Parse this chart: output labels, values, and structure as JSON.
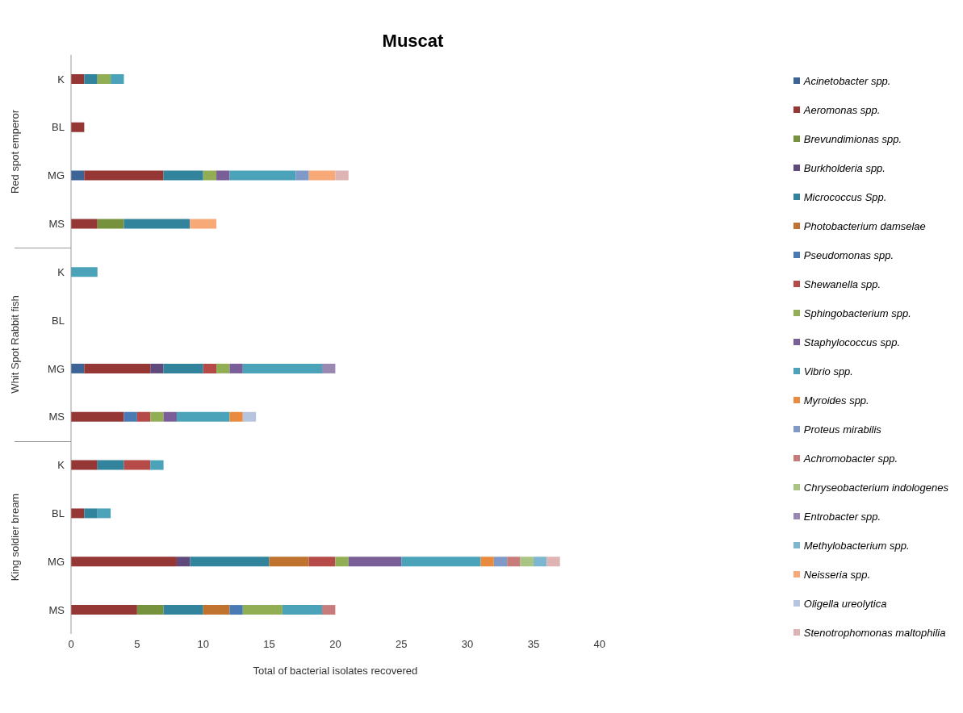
{
  "chart_data": {
    "type": "bar",
    "orientation": "horizontal",
    "stacked": true,
    "title": "Muscat",
    "xlabel": "Total of bacterial isolates recovered",
    "categories": [
      "K",
      "BL",
      "MG",
      "MS",
      "K",
      "BL",
      "MG",
      "MS",
      "K",
      "BL",
      "MG",
      "MS"
    ],
    "annotations": [
      "Red spot emperor",
      "Whit Spot  Rabbit fish",
      "King soldier bream"
    ],
    "xlim": [
      0,
      40
    ],
    "xticks": [
      0,
      5,
      10,
      15,
      20,
      25,
      30,
      35,
      40
    ],
    "grid": false,
    "legend": "right",
    "series": [
      {
        "name": "Acinetobacter  spp.",
        "color": "#3c6496",
        "values": [
          null,
          null,
          1,
          null,
          null,
          null,
          1,
          null,
          null,
          null,
          null,
          null
        ]
      },
      {
        "name": "Aeromonas spp.",
        "color": "#953735",
        "values": [
          1,
          1,
          6,
          2,
          null,
          null,
          5,
          4,
          2,
          1,
          8,
          5
        ]
      },
      {
        "name": "Brevundimionas  spp.",
        "color": "#77923c",
        "values": [
          null,
          null,
          null,
          2,
          null,
          null,
          null,
          null,
          null,
          null,
          null,
          2
        ]
      },
      {
        "name": "Burkholderia spp.",
        "color": "#604a7b",
        "values": [
          null,
          null,
          null,
          null,
          null,
          null,
          1,
          null,
          null,
          null,
          1,
          null
        ]
      },
      {
        "name": "Micrococcus Spp.",
        "color": "#31849b",
        "values": [
          1,
          null,
          3,
          5,
          null,
          null,
          3,
          null,
          2,
          1,
          6,
          3
        ]
      },
      {
        "name": "Photobacterium damselae",
        "color": "#c0722f",
        "values": [
          null,
          null,
          null,
          null,
          null,
          null,
          null,
          null,
          null,
          null,
          3,
          2
        ]
      },
      {
        "name": "Pseudomonas spp.",
        "color": "#4a7ab4",
        "values": [
          null,
          null,
          null,
          null,
          null,
          null,
          null,
          1,
          null,
          null,
          null,
          1
        ]
      },
      {
        "name": "Shewanella  spp.",
        "color": "#b54a48",
        "values": [
          null,
          null,
          null,
          null,
          null,
          null,
          1,
          1,
          2,
          null,
          2,
          null
        ]
      },
      {
        "name": "Sphingobacterium  spp.",
        "color": "#92ae54",
        "values": [
          1,
          null,
          1,
          null,
          null,
          null,
          1,
          1,
          null,
          null,
          1,
          3
        ]
      },
      {
        "name": "Staphylococcus  spp.",
        "color": "#7a5e97",
        "values": [
          null,
          null,
          1,
          null,
          null,
          null,
          1,
          1,
          null,
          null,
          4,
          null
        ]
      },
      {
        "name": "Vibrio spp.",
        "color": "#4aa3b9",
        "values": [
          1,
          null,
          5,
          null,
          2,
          null,
          6,
          4,
          1,
          1,
          6,
          3
        ]
      },
      {
        "name": "Myroides spp.",
        "color": "#e88b3e",
        "values": [
          null,
          null,
          null,
          null,
          null,
          null,
          null,
          1,
          null,
          null,
          1,
          null
        ]
      },
      {
        "name": "Proteus mirabilis",
        "color": "#7f9ac7",
        "values": [
          null,
          null,
          1,
          null,
          null,
          null,
          null,
          null,
          null,
          null,
          1,
          null
        ]
      },
      {
        "name": "Achromobacter  spp.",
        "color": "#c87b7b",
        "values": [
          null,
          null,
          null,
          null,
          null,
          null,
          null,
          null,
          null,
          null,
          1,
          1
        ]
      },
      {
        "name": "Chryseobacterium indologenes",
        "color": "#aac484",
        "values": [
          null,
          null,
          null,
          null,
          null,
          null,
          null,
          null,
          null,
          null,
          1,
          null
        ]
      },
      {
        "name": "Entrobacter spp.",
        "color": "#9b88b2",
        "values": [
          null,
          null,
          null,
          null,
          null,
          null,
          1,
          null,
          null,
          null,
          null,
          null
        ]
      },
      {
        "name": "Methylobacterium spp.",
        "color": "#7db7cf",
        "values": [
          null,
          null,
          null,
          null,
          null,
          null,
          null,
          null,
          null,
          null,
          1,
          null
        ]
      },
      {
        "name": "Neisseria spp.",
        "color": "#f7a978",
        "values": [
          null,
          null,
          2,
          2,
          null,
          null,
          null,
          null,
          null,
          null,
          null,
          null
        ]
      },
      {
        "name": "Oligella ureolytica",
        "color": "#b6c4de",
        "values": [
          null,
          null,
          null,
          null,
          null,
          null,
          null,
          1,
          null,
          null,
          null,
          null
        ]
      },
      {
        "name": "Stenotrophomonas maltophilia",
        "color": "#ddb4b3",
        "values": [
          null,
          null,
          1,
          null,
          null,
          null,
          null,
          null,
          null,
          null,
          1,
          null
        ]
      }
    ]
  }
}
